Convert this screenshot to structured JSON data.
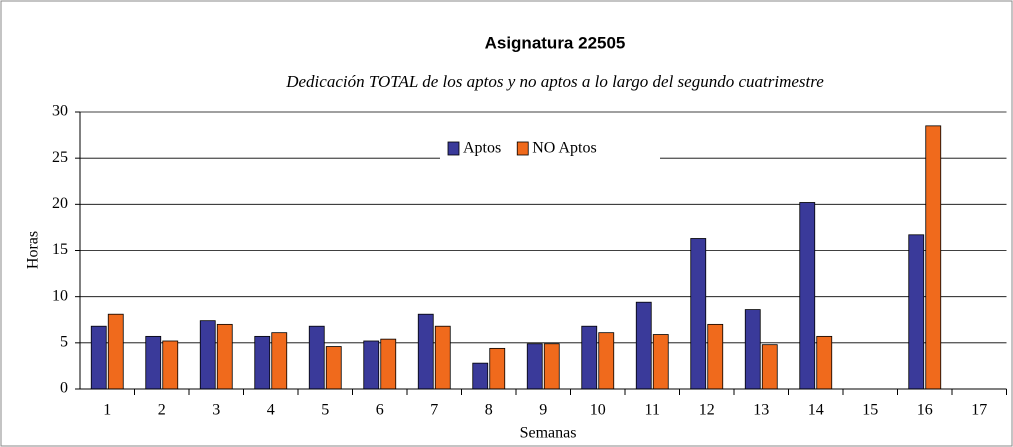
{
  "chart_data": {
    "type": "bar",
    "title": "Asignatura 22505",
    "subtitle": "Dedicación TOTAL de los aptos y no aptos a lo largo del segundo cuatrimestre",
    "x_label": "Semanas",
    "y_label": "Horas",
    "categories": [
      "1",
      "2",
      "3",
      "4",
      "5",
      "6",
      "7",
      "8",
      "9",
      "10",
      "11",
      "12",
      "13",
      "14",
      "15",
      "16",
      "17"
    ],
    "series": [
      {
        "name": "Aptos",
        "color": "#3a3a9a",
        "values": [
          6.8,
          5.7,
          7.4,
          5.7,
          6.8,
          5.2,
          8.1,
          2.8,
          4.9,
          6.8,
          9.4,
          16.3,
          8.6,
          20.2,
          null,
          16.7,
          null
        ]
      },
      {
        "name": "NO Aptos",
        "color": "#f06a1c",
        "values": [
          8.1,
          5.2,
          7.0,
          6.1,
          4.6,
          5.4,
          6.8,
          4.4,
          4.9,
          6.1,
          5.9,
          7.0,
          4.8,
          5.7,
          null,
          28.5,
          null
        ]
      }
    ],
    "ylim": [
      0,
      30
    ],
    "yticks": [
      0,
      5,
      10,
      15,
      20,
      25,
      30
    ],
    "grid": true,
    "legend": "top"
  }
}
